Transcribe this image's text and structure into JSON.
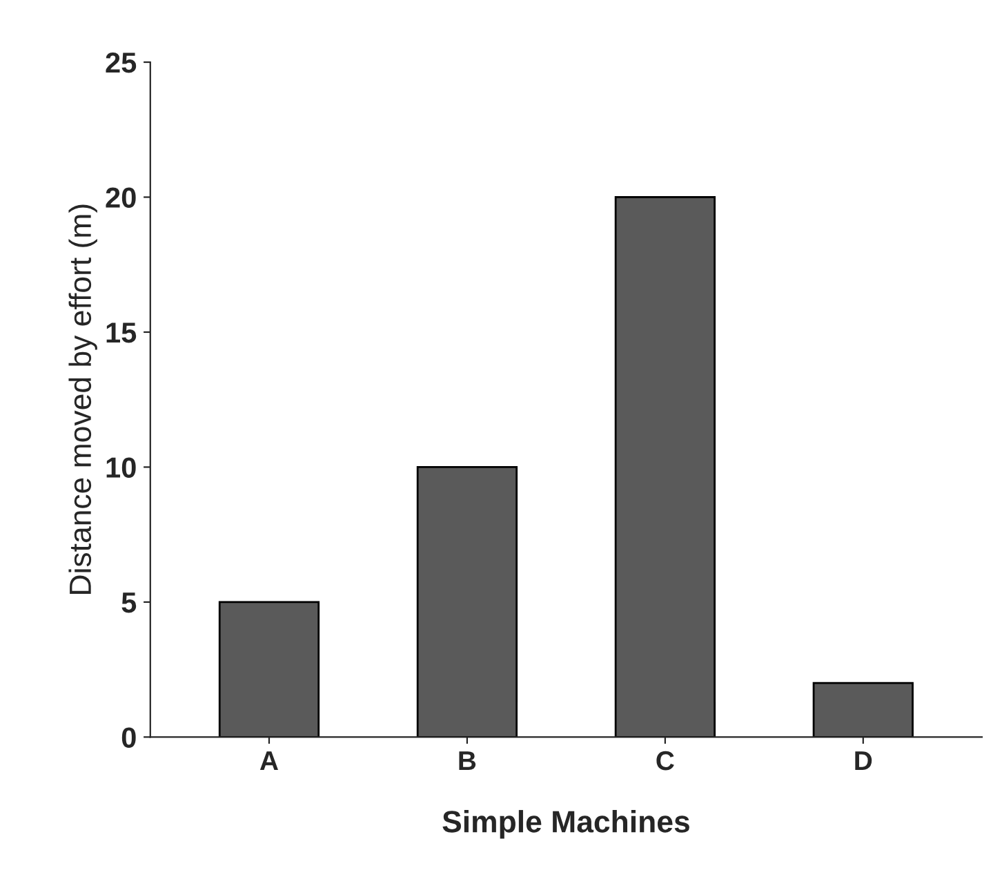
{
  "chart_data": {
    "type": "bar",
    "xlabel": "Simple Machines",
    "ylabel": "Distance moved by effort (m)",
    "categories": [
      "A",
      "B",
      "C",
      "D"
    ],
    "values": [
      5,
      10,
      20,
      2
    ],
    "color": "#5a5a5a",
    "ylim": [
      0,
      25
    ],
    "yticks": [
      0,
      5,
      10,
      15,
      20,
      25
    ],
    "grid": false,
    "legend": false
  }
}
